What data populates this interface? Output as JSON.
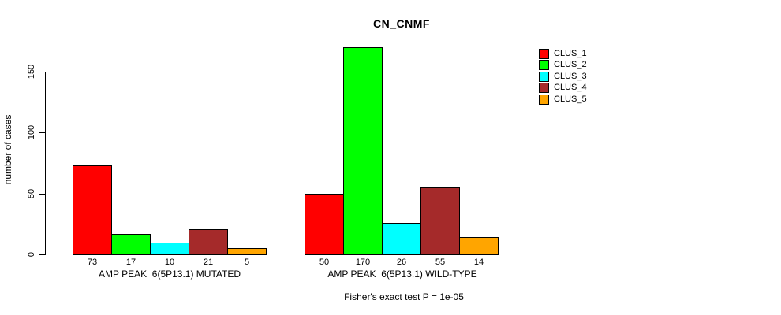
{
  "title": "CN_CNMF",
  "footer": "Fisher's exact test P = 1e-05",
  "chart_data": {
    "type": "bar",
    "title": "CN_CNMF",
    "xlabel": "",
    "ylabel": "number of cases",
    "ylim": [
      0,
      175
    ],
    "yticks": [
      0,
      50,
      100,
      150
    ],
    "grid": false,
    "legend_position": "right-outside",
    "categories": [
      "AMP PEAK  6(5P13.1) MUTATED",
      "AMP PEAK  6(5P13.1) WILD-TYPE"
    ],
    "series": [
      {
        "name": "CLUS_1",
        "color": "#FF0000",
        "values": [
          73,
          50
        ]
      },
      {
        "name": "CLUS_2",
        "color": "#00FF00",
        "values": [
          17,
          170
        ]
      },
      {
        "name": "CLUS_3",
        "color": "#00FFFF",
        "values": [
          10,
          26
        ]
      },
      {
        "name": "CLUS_4",
        "color": "#A52A2A",
        "values": [
          21,
          55
        ]
      },
      {
        "name": "CLUS_5",
        "color": "#FFA500",
        "values": [
          5,
          14
        ]
      }
    ],
    "bar_value_labels_shown": true,
    "annotation": "Fisher's exact test P = 1e-05"
  }
}
